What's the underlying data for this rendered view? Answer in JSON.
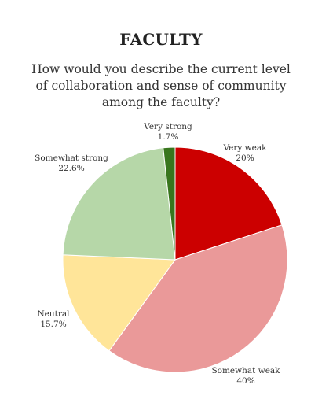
{
  "title": "FACULTY",
  "question_lines": [
    "How would you describe the current level",
    "of collaboration and sense of community",
    "among the faculty?"
  ],
  "chart_data": {
    "type": "pie",
    "title": "FACULTY",
    "subtitle": "How would you describe the current level of collaboration and sense of community among the faculty?",
    "slices": [
      {
        "label": "Very weak",
        "value": 20,
        "value_label": "20%",
        "color": "#cc0000"
      },
      {
        "label": "Somewhat weak",
        "value": 40,
        "value_label": "40%",
        "color": "#ea9999"
      },
      {
        "label": "Neutral",
        "value": 15.7,
        "value_label": "15.7%",
        "color": "#ffe599"
      },
      {
        "label": "Somewhat strong",
        "value": 22.6,
        "value_label": "22.6%",
        "color": "#b6d7a8"
      },
      {
        "label": "Very strong",
        "value": 1.7,
        "value_label": "1.7%",
        "color": "#38761d"
      }
    ],
    "start_angle": "12 o'clock",
    "direction": "clockwise",
    "legend": "none"
  }
}
